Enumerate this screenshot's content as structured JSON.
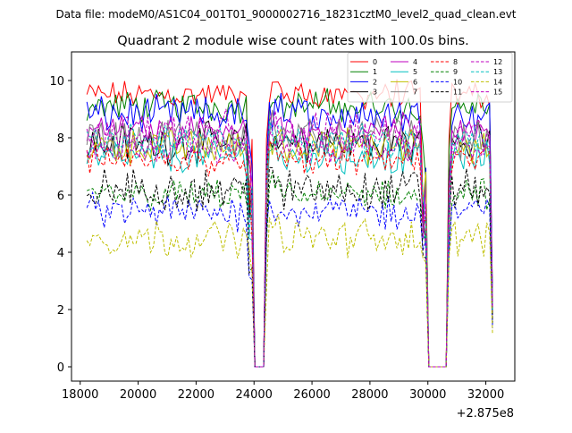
{
  "figure": {
    "suptitle": "Data file: modeM0/AS1C04_001T01_9000002716_18231cztM0_level2_quad_clean.evt"
  },
  "chart_data": {
    "type": "line",
    "title": "Quadrant 2 module wise count rates with 100.0s bins.",
    "xlabel": "",
    "ylabel": "",
    "x_offset_label": "+2.875e8",
    "xlim": [
      17700,
      33000
    ],
    "ylim": [
      -0.5,
      11.0
    ],
    "x_ticks": [
      18000,
      20000,
      22000,
      24000,
      26000,
      28000,
      30000,
      32000
    ],
    "x_tick_labels": [
      "18000",
      "20000",
      "22000",
      "24000",
      "26000",
      "28000",
      "30000",
      "32000"
    ],
    "y_ticks": [
      0,
      2,
      4,
      6,
      8,
      10
    ],
    "y_tick_labels": [
      "0",
      "2",
      "4",
      "6",
      "8",
      "10"
    ],
    "grid": false,
    "legend_position": "upper-right",
    "legend_columns": 4,
    "gaps": [
      [
        23950,
        24350
      ],
      [
        29950,
        30650
      ]
    ],
    "data_range": [
      18231,
      32250
    ],
    "series": [
      {
        "name": "0",
        "color": "#ff0000",
        "dash": "solid",
        "level": 9.5
      },
      {
        "name": "1",
        "color": "#008000",
        "dash": "solid",
        "level": 9.1
      },
      {
        "name": "2",
        "color": "#0000ff",
        "dash": "solid",
        "level": 8.8
      },
      {
        "name": "3",
        "color": "#000000",
        "dash": "solid",
        "level": 7.8
      },
      {
        "name": "4",
        "color": "#bf00bf",
        "dash": "solid",
        "level": 8.3
      },
      {
        "name": "5",
        "color": "#00bfbf",
        "dash": "solid",
        "level": 7.3
      },
      {
        "name": "6",
        "color": "#bfbf00",
        "dash": "solid",
        "level": 7.7
      },
      {
        "name": "7",
        "color": "#808080",
        "dash": "solid",
        "level": 8.0
      },
      {
        "name": "8",
        "color": "#ff0000",
        "dash": "dashed",
        "level": 7.2
      },
      {
        "name": "9",
        "color": "#008000",
        "dash": "dashed",
        "level": 6.0
      },
      {
        "name": "10",
        "color": "#0000ff",
        "dash": "dashed",
        "level": 5.4
      },
      {
        "name": "11",
        "color": "#000000",
        "dash": "dashed",
        "level": 6.2
      },
      {
        "name": "12",
        "color": "#bf00bf",
        "dash": "dashed",
        "level": 7.6
      },
      {
        "name": "13",
        "color": "#00bfbf",
        "dash": "dashed",
        "level": 7.9
      },
      {
        "name": "14",
        "color": "#bfbf00",
        "dash": "dashed",
        "level": 4.5
      },
      {
        "name": "15",
        "color": "#bf00bf",
        "dash": "dashed",
        "level": 8.2
      }
    ]
  }
}
